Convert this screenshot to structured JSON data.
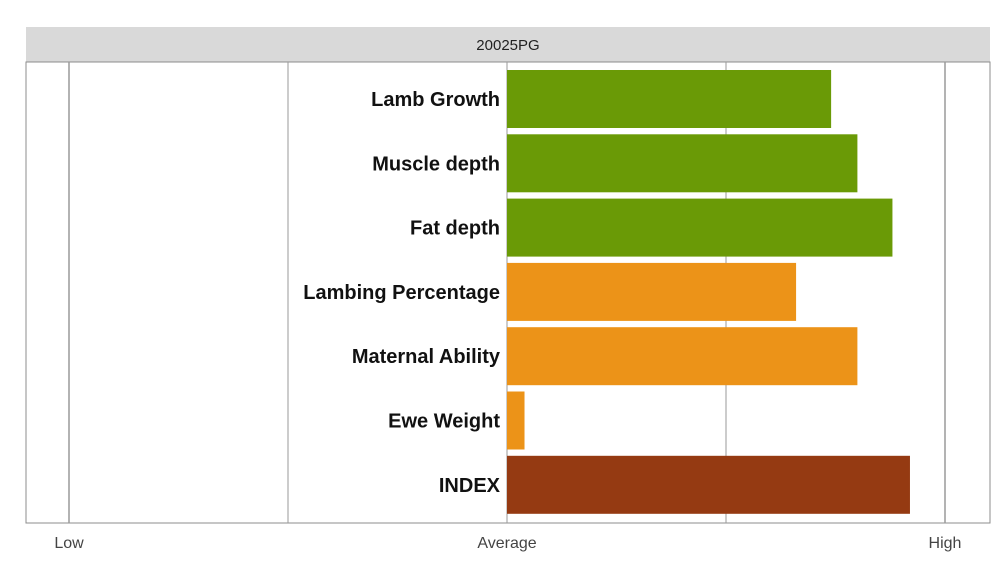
{
  "chart_data": {
    "type": "bar",
    "orientation": "horizontal",
    "title": "20025PG",
    "categories": [
      "Lamb Growth",
      "Muscle depth",
      "Fat depth",
      "Lambing Percentage",
      "Maternal Ability",
      "Ewe Weight",
      "INDEX"
    ],
    "values": [
      0.74,
      0.8,
      0.88,
      0.66,
      0.8,
      0.04,
      0.92
    ],
    "bar_colors": [
      "#6a9a06",
      "#6a9a06",
      "#6a9a06",
      "#ec9318",
      "#ec9318",
      "#ec9318",
      "#953a12"
    ],
    "xlim": [
      -1,
      1
    ],
    "x_ticks": [
      {
        "value": -1,
        "label": "Low"
      },
      {
        "value": 0,
        "label": "Average"
      },
      {
        "value": 1,
        "label": "High"
      }
    ],
    "x_gridlines": [
      -1,
      -0.5,
      0,
      0.5,
      1
    ],
    "grid": true,
    "legend": "none"
  },
  "colors": {
    "title_strip": "#d9d9d9",
    "panel_border": "#8c8c8c",
    "gridline": "#9a9a9a"
  }
}
